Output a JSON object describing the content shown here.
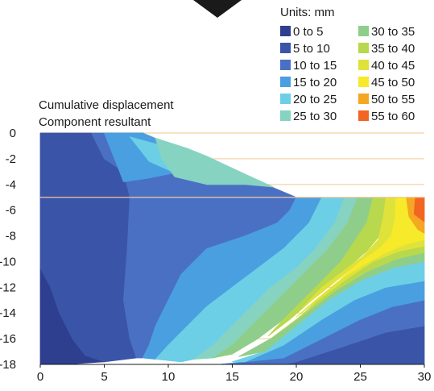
{
  "chart_data": {
    "type": "heatmap",
    "title": "",
    "xlabel": "",
    "ylabel": "",
    "annotations": [
      "Cumulative displacement",
      "Component resultant"
    ],
    "xlim": [
      0,
      30
    ],
    "ylim": [
      -18,
      0
    ],
    "x_ticks": [
      0,
      5,
      10,
      15,
      20,
      25,
      30
    ],
    "y_ticks": [
      0,
      -2,
      -4,
      -6,
      -8,
      -10,
      -12,
      -14,
      -16,
      -18
    ],
    "excavation": {
      "top_depth": 0,
      "base_depth": -5,
      "crest_x": 8,
      "toe_x": 20
    },
    "legend": {
      "title": "Units: mm",
      "placement": "top-right",
      "entries": [
        {
          "label": "0 to 5",
          "color": "#2f3f8f"
        },
        {
          "label": "5 to 10",
          "color": "#3a55a8"
        },
        {
          "label": "10 to 15",
          "color": "#4a70c4"
        },
        {
          "label": "15 to 20",
          "color": "#4a9fe0"
        },
        {
          "label": "20 to 25",
          "color": "#6dcfe6"
        },
        {
          "label": "25 to 30",
          "color": "#86d3c2"
        },
        {
          "label": "30 to 35",
          "color": "#8fce8a"
        },
        {
          "label": "35 to 40",
          "color": "#b8d84e"
        },
        {
          "label": "40 to 45",
          "color": "#dfe23a"
        },
        {
          "label": "45 to 50",
          "color": "#f6ea2a"
        },
        {
          "label": "50 to 55",
          "color": "#f5a623"
        },
        {
          "label": "55 to 60",
          "color": "#f26522"
        }
      ]
    },
    "contour_levels": [
      {
        "range": "0 to 5",
        "polygon": [
          [
            0,
            -10.5
          ],
          [
            0.8,
            -12
          ],
          [
            1.5,
            -14
          ],
          [
            2.5,
            -16
          ],
          [
            3.5,
            -17.3
          ],
          [
            5,
            -17.8
          ],
          [
            2,
            -18
          ],
          [
            0,
            -18
          ]
        ]
      },
      {
        "range": "5 to 10",
        "polygon": [
          [
            0,
            0
          ],
          [
            4,
            0
          ],
          [
            5,
            -2
          ],
          [
            6.5,
            -3
          ],
          [
            7,
            -5
          ],
          [
            6.8,
            -9
          ],
          [
            6.5,
            -13
          ],
          [
            7,
            -16
          ],
          [
            7.5,
            -17.5
          ],
          [
            5,
            -17.8
          ],
          [
            3.5,
            -17.3
          ],
          [
            2.5,
            -16
          ],
          [
            1.5,
            -14
          ],
          [
            0.8,
            -12
          ],
          [
            0,
            -10.5
          ]
        ]
      },
      {
        "range": "5 to 10",
        "polygon": [
          [
            30,
            -18
          ],
          [
            30,
            -15
          ],
          [
            27,
            -15.5
          ],
          [
            24,
            -16.5
          ],
          [
            20,
            -17.8
          ],
          [
            19,
            -18
          ]
        ]
      },
      {
        "range": "10 to 15",
        "polygon": [
          [
            4,
            0
          ],
          [
            8,
            0
          ],
          [
            20,
            -5
          ],
          [
            19.5,
            -6
          ],
          [
            18.5,
            -7
          ],
          [
            16,
            -8
          ],
          [
            13,
            -9
          ],
          [
            11,
            -11
          ],
          [
            10,
            -13
          ],
          [
            9,
            -15
          ],
          [
            8.5,
            -16.5
          ],
          [
            8,
            -17.5
          ],
          [
            7.5,
            -17.5
          ],
          [
            7,
            -16
          ],
          [
            6.5,
            -13
          ],
          [
            6.8,
            -9
          ],
          [
            7,
            -5
          ],
          [
            6.5,
            -3
          ],
          [
            5,
            -2
          ]
        ]
      },
      {
        "range": "10 to 15",
        "polygon": [
          [
            30,
            -15
          ],
          [
            30,
            -13
          ],
          [
            27.5,
            -13.5
          ],
          [
            25,
            -14.5
          ],
          [
            22,
            -16
          ],
          [
            19,
            -17.5
          ],
          [
            14,
            -18
          ],
          [
            19,
            -18
          ],
          [
            20,
            -17.8
          ],
          [
            24,
            -16.5
          ],
          [
            27,
            -15.5
          ]
        ]
      },
      {
        "range": "15 to 20",
        "polygon": [
          [
            5,
            0
          ],
          [
            8,
            0
          ],
          [
            13.5,
            -2.3
          ],
          [
            11,
            -3
          ],
          [
            8.5,
            -3.5
          ],
          [
            6.5,
            -3.8
          ],
          [
            6,
            -2.5
          ]
        ]
      },
      {
        "range": "15 to 20",
        "polygon": [
          [
            20,
            -5
          ],
          [
            22,
            -5
          ],
          [
            21,
            -7
          ],
          [
            19,
            -9
          ],
          [
            17,
            -10.5
          ],
          [
            15,
            -12
          ],
          [
            13,
            -13.5
          ],
          [
            11.5,
            -15
          ],
          [
            10,
            -16.5
          ],
          [
            9,
            -17.6
          ],
          [
            8,
            -17.5
          ],
          [
            8.5,
            -16.5
          ],
          [
            9,
            -15
          ],
          [
            10,
            -13
          ],
          [
            11,
            -11
          ],
          [
            13,
            -9
          ],
          [
            16,
            -8
          ],
          [
            18.5,
            -7
          ],
          [
            19.5,
            -6
          ]
        ]
      },
      {
        "range": "15 to 20",
        "polygon": [
          [
            30,
            -13
          ],
          [
            30,
            -11.5
          ],
          [
            27,
            -12
          ],
          [
            24.5,
            -13
          ],
          [
            22,
            -14.5
          ],
          [
            19,
            -16.5
          ],
          [
            16,
            -17.8
          ],
          [
            14,
            -18
          ],
          [
            19,
            -17.5
          ],
          [
            22,
            -16
          ],
          [
            25,
            -14.5
          ],
          [
            27.5,
            -13.5
          ]
        ]
      },
      {
        "range": "20 to 25",
        "polygon": [
          [
            7,
            -0.3
          ],
          [
            10.3,
            -1.2
          ],
          [
            16,
            -3.4
          ],
          [
            13,
            -3.2
          ],
          [
            10.5,
            -3.1
          ],
          [
            8.5,
            -2.2
          ]
        ]
      },
      {
        "range": "20 to 25",
        "polygon": [
          [
            22,
            -5
          ],
          [
            23.8,
            -5
          ],
          [
            23,
            -7
          ],
          [
            21.5,
            -9
          ],
          [
            20,
            -10.5
          ],
          [
            18,
            -12
          ],
          [
            16.5,
            -13.5
          ],
          [
            15,
            -15
          ],
          [
            13.5,
            -16.5
          ],
          [
            12,
            -17.6
          ],
          [
            11,
            -17.8
          ],
          [
            9,
            -17.6
          ],
          [
            10,
            -16.5
          ],
          [
            11.5,
            -15
          ],
          [
            13,
            -13.5
          ],
          [
            15,
            -12
          ],
          [
            17,
            -10.5
          ],
          [
            19,
            -9
          ],
          [
            21,
            -7
          ]
        ]
      },
      {
        "range": "20 to 25",
        "polygon": [
          [
            30,
            -11.5
          ],
          [
            30,
            -10
          ],
          [
            27.5,
            -10.5
          ],
          [
            25,
            -11.5
          ],
          [
            22.5,
            -13
          ],
          [
            20,
            -15
          ],
          [
            17.5,
            -17
          ],
          [
            15,
            -17.8
          ],
          [
            16,
            -17.8
          ],
          [
            19,
            -16.5
          ],
          [
            22,
            -14.5
          ],
          [
            24.5,
            -13
          ],
          [
            27,
            -12
          ]
        ]
      },
      {
        "range": "25 to 30",
        "polygon": [
          [
            9,
            -0.4
          ],
          [
            11.5,
            -1.2
          ],
          [
            13,
            -1.8
          ],
          [
            16,
            -3.2
          ],
          [
            18.2,
            -4.2
          ],
          [
            16,
            -4
          ],
          [
            13,
            -4
          ],
          [
            10.5,
            -3.4
          ],
          [
            9.5,
            -2
          ]
        ]
      },
      {
        "range": "25 to 30",
        "polygon": [
          [
            23.8,
            -5
          ],
          [
            24.8,
            -5
          ],
          [
            24,
            -7
          ],
          [
            22.5,
            -9
          ],
          [
            21,
            -10.5
          ],
          [
            19.5,
            -12
          ],
          [
            18,
            -13.5
          ],
          [
            16.5,
            -15
          ],
          [
            15,
            -16.5
          ],
          [
            13.5,
            -17.5
          ],
          [
            12,
            -17.6
          ],
          [
            13.5,
            -16.5
          ],
          [
            15,
            -15
          ],
          [
            16.5,
            -13.5
          ],
          [
            18,
            -12
          ],
          [
            20,
            -10.5
          ],
          [
            21.5,
            -9
          ],
          [
            23,
            -7
          ]
        ]
      },
      {
        "range": "30 to 35",
        "polygon": [
          [
            24.8,
            -5
          ],
          [
            26,
            -5
          ],
          [
            25.5,
            -7
          ],
          [
            24.5,
            -8.5
          ],
          [
            23.5,
            -10
          ],
          [
            22,
            -11.5
          ],
          [
            20.5,
            -13
          ],
          [
            19,
            -14.5
          ],
          [
            17,
            -16
          ],
          [
            15,
            -17.2
          ],
          [
            13.5,
            -17.5
          ],
          [
            15,
            -16.5
          ],
          [
            16.5,
            -15
          ],
          [
            18,
            -13.5
          ],
          [
            19.5,
            -12
          ],
          [
            21,
            -10.5
          ],
          [
            22.5,
            -9
          ],
          [
            24,
            -7
          ]
        ]
      },
      {
        "range": "30 to 35",
        "polygon": [
          [
            30,
            -10
          ],
          [
            30,
            -9.3
          ],
          [
            27.8,
            -9.8
          ],
          [
            25.5,
            -10.8
          ],
          [
            23,
            -12.3
          ],
          [
            20.5,
            -14.2
          ],
          [
            18,
            -16
          ],
          [
            15.5,
            -17.4
          ],
          [
            17.5,
            -17
          ],
          [
            20,
            -15
          ],
          [
            22.5,
            -13
          ],
          [
            25,
            -11.5
          ],
          [
            27.5,
            -10.5
          ]
        ]
      },
      {
        "range": "35 to 40",
        "polygon": [
          [
            26,
            -5
          ],
          [
            27,
            -5
          ],
          [
            26.8,
            -6.5
          ],
          [
            26.5,
            -8
          ],
          [
            25.5,
            -9.2
          ],
          [
            24,
            -10.5
          ],
          [
            22.5,
            -11.8
          ],
          [
            21,
            -13.2
          ],
          [
            19.5,
            -14.5
          ],
          [
            17.8,
            -15.8
          ],
          [
            19,
            -14.5
          ],
          [
            20.5,
            -13
          ],
          [
            22,
            -11.5
          ],
          [
            23.5,
            -10
          ],
          [
            24.5,
            -8.5
          ],
          [
            25.5,
            -7
          ]
        ]
      },
      {
        "range": "35 to 40",
        "polygon": [
          [
            30,
            -9.3
          ],
          [
            30,
            -8.8
          ],
          [
            28,
            -9.2
          ],
          [
            26,
            -10
          ],
          [
            24,
            -11.3
          ],
          [
            22,
            -12.8
          ],
          [
            20,
            -14.5
          ],
          [
            18,
            -16
          ],
          [
            20.5,
            -14.2
          ],
          [
            23,
            -12.3
          ],
          [
            25.5,
            -10.8
          ],
          [
            27.8,
            -9.8
          ]
        ]
      },
      {
        "range": "40 to 45",
        "polygon": [
          [
            27,
            -5
          ],
          [
            27.8,
            -5
          ],
          [
            27.7,
            -6.8
          ],
          [
            27.4,
            -8
          ],
          [
            26.5,
            -9
          ],
          [
            25,
            -10
          ],
          [
            23.5,
            -11.2
          ],
          [
            22,
            -12.4
          ],
          [
            20.5,
            -13.6
          ],
          [
            22,
            -12
          ],
          [
            23.6,
            -10.8
          ],
          [
            25.2,
            -9.6
          ],
          [
            26.4,
            -8.3
          ],
          [
            26.8,
            -6.5
          ]
        ]
      },
      {
        "range": "40 to 45",
        "polygon": [
          [
            30,
            -8.8
          ],
          [
            30,
            -8.3
          ],
          [
            28.4,
            -8.7
          ],
          [
            26.8,
            -9.4
          ],
          [
            25,
            -10.4
          ],
          [
            23.2,
            -11.6
          ],
          [
            21.5,
            -13
          ],
          [
            20,
            -14.3
          ],
          [
            22,
            -12.8
          ],
          [
            24,
            -11.3
          ],
          [
            26,
            -10
          ],
          [
            28,
            -9.2
          ]
        ]
      },
      {
        "range": "45 to 50",
        "polygon": [
          [
            27.8,
            -5
          ],
          [
            28.6,
            -5
          ],
          [
            28.8,
            -6.5
          ],
          [
            29.5,
            -7.5
          ],
          [
            30,
            -7.8
          ],
          [
            30,
            -8.3
          ],
          [
            28.4,
            -8.7
          ],
          [
            26.8,
            -9.4
          ],
          [
            25,
            -10.4
          ],
          [
            23.4,
            -11.4
          ],
          [
            25,
            -10
          ],
          [
            26.5,
            -9
          ],
          [
            27.4,
            -8
          ],
          [
            27.7,
            -6.8
          ]
        ]
      },
      {
        "range": "50 to 55",
        "polygon": [
          [
            28.6,
            -5
          ],
          [
            29.3,
            -5
          ],
          [
            29.2,
            -6.3
          ],
          [
            30,
            -6.9
          ],
          [
            30,
            -7.8
          ],
          [
            29.5,
            -7.5
          ],
          [
            28.8,
            -6.5
          ]
        ]
      },
      {
        "range": "55 to 60",
        "polygon": [
          [
            29.3,
            -5
          ],
          [
            30,
            -5
          ],
          [
            30,
            -6.9
          ],
          [
            29.2,
            -6.3
          ]
        ]
      }
    ]
  }
}
